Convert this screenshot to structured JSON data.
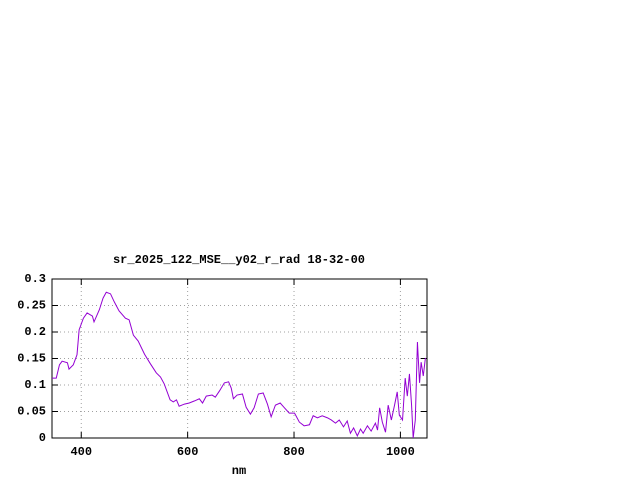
{
  "chart_data": {
    "type": "line",
    "title": "sr_2025_122_MSE__y02_r_rad 18-32-00",
    "x_label": "nm",
    "x": [
      345,
      353,
      359,
      364,
      374,
      377,
      385,
      392,
      396,
      404,
      411,
      421,
      424,
      434,
      441,
      447,
      455,
      462,
      471,
      483,
      490,
      498,
      507,
      519,
      530,
      541,
      549,
      556,
      567,
      573,
      579,
      584,
      594,
      603,
      613,
      622,
      628,
      635,
      646,
      652,
      660,
      669,
      677,
      682,
      686,
      693,
      703,
      710,
      718,
      725,
      733,
      742,
      750,
      757,
      765,
      774,
      782,
      791,
      801,
      810,
      819,
      829,
      836,
      844,
      853,
      863,
      870,
      878,
      885,
      893,
      900,
      906,
      912,
      919,
      925,
      930,
      938,
      945,
      953,
      957,
      961,
      966,
      972,
      977,
      983,
      989,
      994,
      998,
      1004,
      1009,
      1013,
      1017,
      1021,
      1024,
      1028,
      1032,
      1036,
      1039,
      1043,
      1047
    ],
    "series": [
      {
        "color": "#9400d3",
        "values": [
          0.113,
          0.113,
          0.138,
          0.145,
          0.142,
          0.13,
          0.138,
          0.157,
          0.204,
          0.226,
          0.236,
          0.23,
          0.219,
          0.242,
          0.264,
          0.275,
          0.272,
          0.257,
          0.24,
          0.226,
          0.223,
          0.194,
          0.183,
          0.158,
          0.14,
          0.123,
          0.115,
          0.102,
          0.072,
          0.068,
          0.072,
          0.06,
          0.064,
          0.066,
          0.07,
          0.074,
          0.066,
          0.079,
          0.081,
          0.077,
          0.089,
          0.104,
          0.106,
          0.094,
          0.074,
          0.081,
          0.083,
          0.058,
          0.045,
          0.057,
          0.083,
          0.085,
          0.064,
          0.04,
          0.062,
          0.066,
          0.057,
          0.047,
          0.047,
          0.03,
          0.023,
          0.025,
          0.042,
          0.038,
          0.042,
          0.038,
          0.034,
          0.028,
          0.034,
          0.021,
          0.032,
          0.009,
          0.019,
          0.004,
          0.017,
          0.009,
          0.023,
          0.013,
          0.028,
          0.015,
          0.057,
          0.03,
          0.011,
          0.062,
          0.034,
          0.062,
          0.087,
          0.043,
          0.034,
          0.113,
          0.079,
          0.121,
          0.062,
          0,
          0.034,
          0.181,
          0.104,
          0.143,
          0.117,
          0.151
        ]
      }
    ],
    "xlim": [
      345,
      1050
    ],
    "xticks": [
      400,
      600,
      800,
      1000
    ],
    "ylim": [
      0,
      0.3
    ],
    "yticks": [
      0,
      0.05,
      0.1,
      0.15,
      0.2,
      0.25,
      0.3
    ],
    "grid": true
  }
}
